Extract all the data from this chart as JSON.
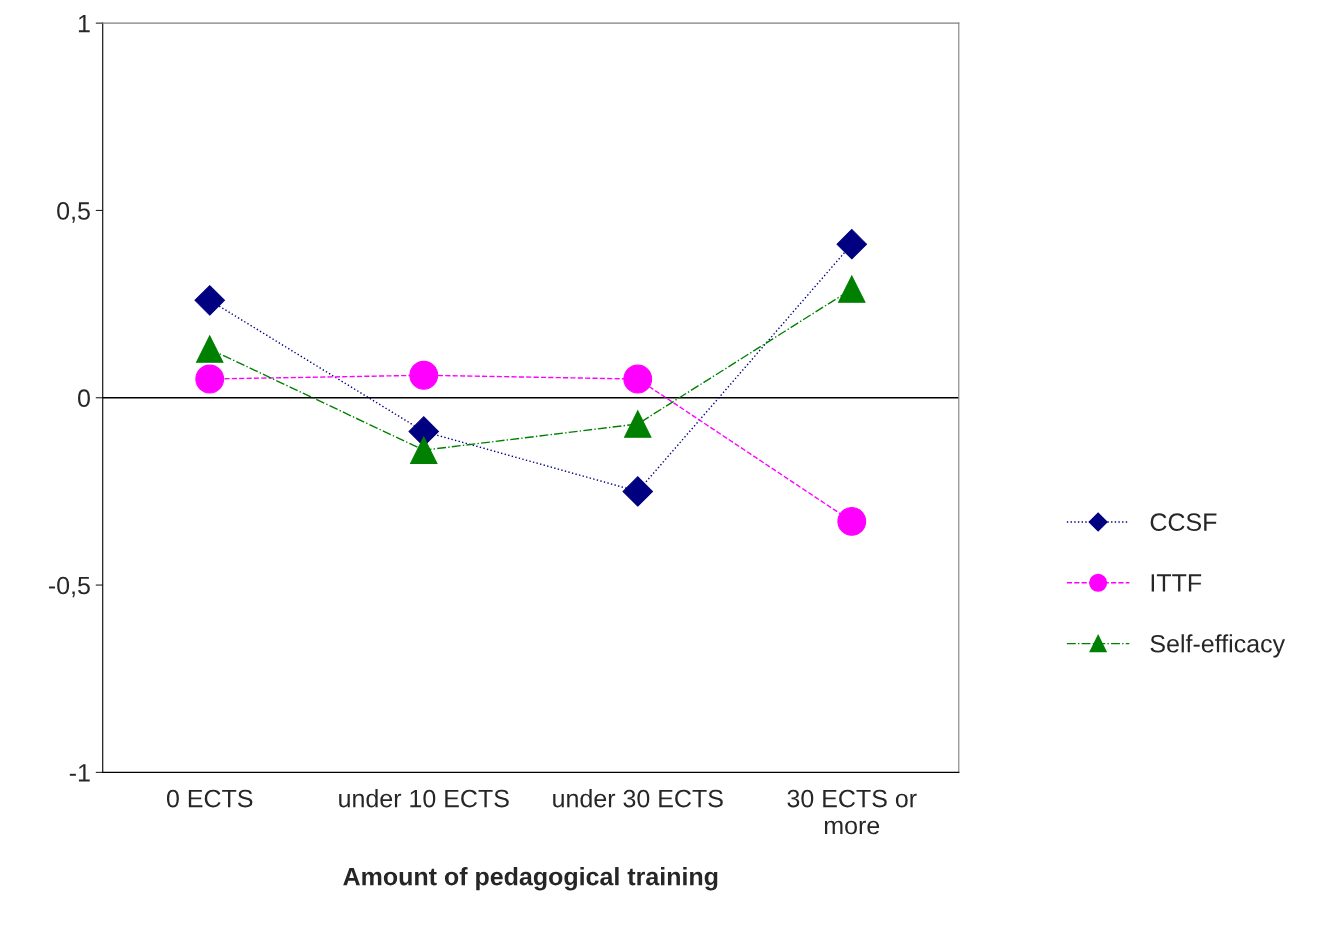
{
  "chart_data": {
    "type": "line",
    "xlabel": "Amount of pedagogical training",
    "categories": [
      "0 ECTS",
      "under 10 ECTS",
      "under 30 ECTS",
      "30 ECTS or\nmore"
    ],
    "series": [
      {
        "name": "CCSF",
        "color": "#000080",
        "values": [
          0.26,
          -0.09,
          -0.25,
          0.41
        ],
        "marker": "diamond",
        "line_style": "dotted"
      },
      {
        "name": "ITTF",
        "color": "#ff00ff",
        "values": [
          0.05,
          0.06,
          0.05,
          -0.33
        ],
        "marker": "circle",
        "line_style": "dashed"
      },
      {
        "name": "Self-efficacy",
        "color": "#008000",
        "values": [
          0.13,
          -0.14,
          -0.07,
          0.29
        ],
        "marker": "triangle",
        "line_style": "dashdot"
      }
    ],
    "ylim": [
      -1,
      1
    ],
    "yticks": [
      {
        "value": -1,
        "label": "-1"
      },
      {
        "value": -0.5,
        "label": "-0,5"
      },
      0,
      {
        "value": 0.5,
        "label": "0,5"
      },
      1
    ],
    "ref_lines": [
      {
        "axis": "y",
        "value": 0,
        "color": "#000000"
      }
    ],
    "grid": false,
    "legend": "right"
  }
}
